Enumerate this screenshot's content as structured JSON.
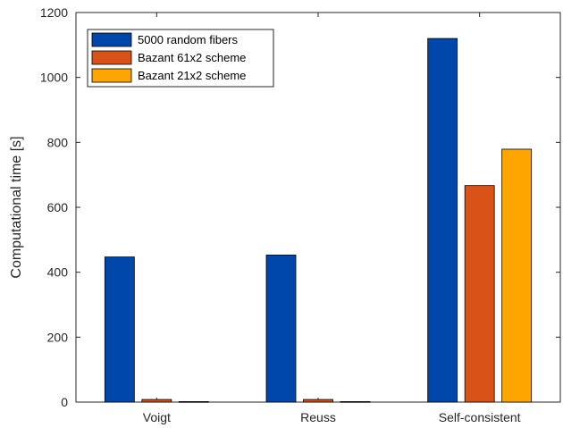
{
  "chart_data": {
    "type": "bar",
    "categories": [
      "Voigt",
      "Reuss",
      "Self-consistent"
    ],
    "series": [
      {
        "name": "5000 random fibers",
        "color": "#0047AB",
        "values": [
          447,
          453,
          1120
        ]
      },
      {
        "name": "Bazant 61x2 scheme",
        "color": "#D95319",
        "values": [
          8,
          8,
          667
        ]
      },
      {
        "name": "Bazant 21x2 scheme",
        "color": "#FFA500",
        "values": [
          1.5,
          1.5,
          779
        ]
      }
    ],
    "title": "",
    "xlabel": "",
    "ylabel": "Computational time [s]",
    "ylim": [
      0,
      1200
    ],
    "yticks": [
      0,
      200,
      400,
      600,
      800,
      1000,
      1200
    ],
    "grid": false,
    "legend_position": "top-left"
  }
}
